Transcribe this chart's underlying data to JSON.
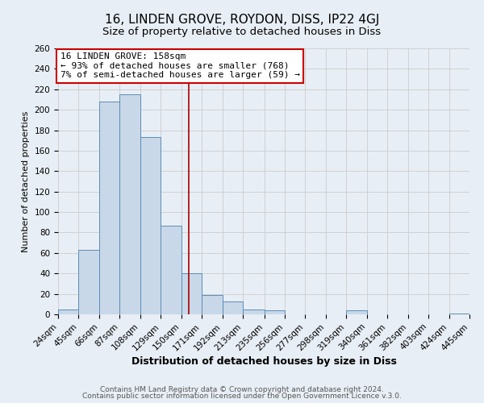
{
  "title": "16, LINDEN GROVE, ROYDON, DISS, IP22 4GJ",
  "subtitle": "Size of property relative to detached houses in Diss",
  "xlabel": "Distribution of detached houses by size in Diss",
  "ylabel": "Number of detached properties",
  "bin_edges": [
    24,
    45,
    66,
    87,
    108,
    129,
    150,
    171,
    192,
    213,
    235,
    256,
    277,
    298,
    319,
    340,
    361,
    382,
    403,
    424,
    445
  ],
  "bin_labels": [
    "24sqm",
    "45sqm",
    "66sqm",
    "87sqm",
    "108sqm",
    "129sqm",
    "150sqm",
    "171sqm",
    "192sqm",
    "213sqm",
    "235sqm",
    "256sqm",
    "277sqm",
    "298sqm",
    "319sqm",
    "340sqm",
    "361sqm",
    "382sqm",
    "403sqm",
    "424sqm",
    "445sqm"
  ],
  "bar_heights": [
    5,
    63,
    208,
    215,
    173,
    87,
    40,
    19,
    13,
    5,
    4,
    0,
    0,
    0,
    4,
    0,
    0,
    0,
    0,
    1
  ],
  "bar_color": "#c8d8e8",
  "bar_edge_color": "#5b8db8",
  "red_line_x": 158,
  "ylim": [
    0,
    260
  ],
  "yticks": [
    0,
    20,
    40,
    60,
    80,
    100,
    120,
    140,
    160,
    180,
    200,
    220,
    240,
    260
  ],
  "annotation_line1": "16 LINDEN GROVE: 158sqm",
  "annotation_line2": "← 93% of detached houses are smaller (768)",
  "annotation_line3": "7% of semi-detached houses are larger (59) →",
  "annotation_box_color": "#ffffff",
  "annotation_box_edge_color": "#cc0000",
  "grid_color": "#cccccc",
  "background_color": "#e8eef5",
  "plot_bg_color": "#e8eef5",
  "footer_line1": "Contains HM Land Registry data © Crown copyright and database right 2024.",
  "footer_line2": "Contains public sector information licensed under the Open Government Licence v.3.0.",
  "title_fontsize": 11,
  "subtitle_fontsize": 9.5,
  "xlabel_fontsize": 9,
  "ylabel_fontsize": 8,
  "tick_fontsize": 7.5,
  "annotation_fontsize": 8,
  "footer_fontsize": 6.5
}
